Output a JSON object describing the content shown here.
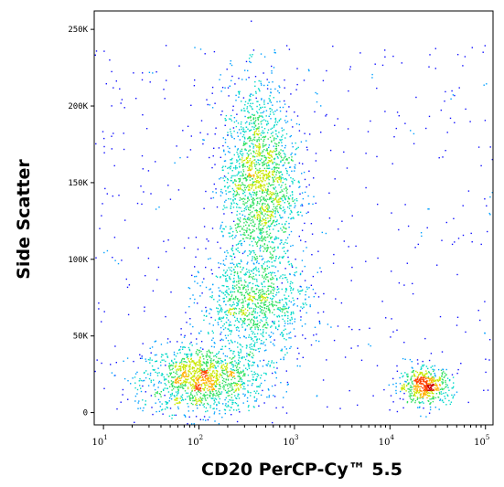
{
  "chart_data": {
    "type": "scatter",
    "plot_style": "flow cytometry density dot plot",
    "title": "",
    "xlabel": "CD20 PerCP-Cy™ 5.5",
    "ylabel": "Side Scatter",
    "x_scale": "log",
    "xlim": [
      8,
      120000
    ],
    "ylim": [
      -8000,
      262000
    ],
    "x_ticks": [
      {
        "value": 10,
        "base": "10",
        "exp": "1"
      },
      {
        "value": 100,
        "base": "10",
        "exp": "2"
      },
      {
        "value": 1000,
        "base": "10",
        "exp": "3"
      },
      {
        "value": 10000,
        "base": "10",
        "exp": "4"
      },
      {
        "value": 100000,
        "base": "10",
        "exp": "5"
      }
    ],
    "y_ticks": [
      {
        "value": 0,
        "label": "0"
      },
      {
        "value": 50000,
        "label": "50K"
      },
      {
        "value": 100000,
        "label": "100K"
      },
      {
        "value": 150000,
        "label": "150K"
      },
      {
        "value": 200000,
        "label": "200K"
      },
      {
        "value": 250000,
        "label": "250K"
      }
    ],
    "density_colors": [
      "#1010ff",
      "#00a0ff",
      "#00d8c8",
      "#30e060",
      "#c8e800",
      "#ffb000",
      "#ff4000",
      "#d00000"
    ],
    "populations": [
      {
        "name": "CD20- low SSC",
        "x_center": 110,
        "y_center": 22000,
        "x_log_sd": 0.32,
        "y_sd": 11000,
        "share": 0.25
      },
      {
        "name": "CD20- high SSC",
        "x_center": 420,
        "y_center": 150000,
        "x_log_sd": 0.2,
        "y_sd": 32000,
        "share": 0.35
      },
      {
        "name": "intermediate",
        "x_center": 380,
        "y_center": 70000,
        "x_log_sd": 0.28,
        "y_sd": 16000,
        "share": 0.18
      },
      {
        "name": "CD20+",
        "x_center": 23000,
        "y_center": 18000,
        "x_log_sd": 0.14,
        "y_sd": 6000,
        "share": 0.1
      }
    ],
    "grid": false,
    "legend": "none"
  }
}
